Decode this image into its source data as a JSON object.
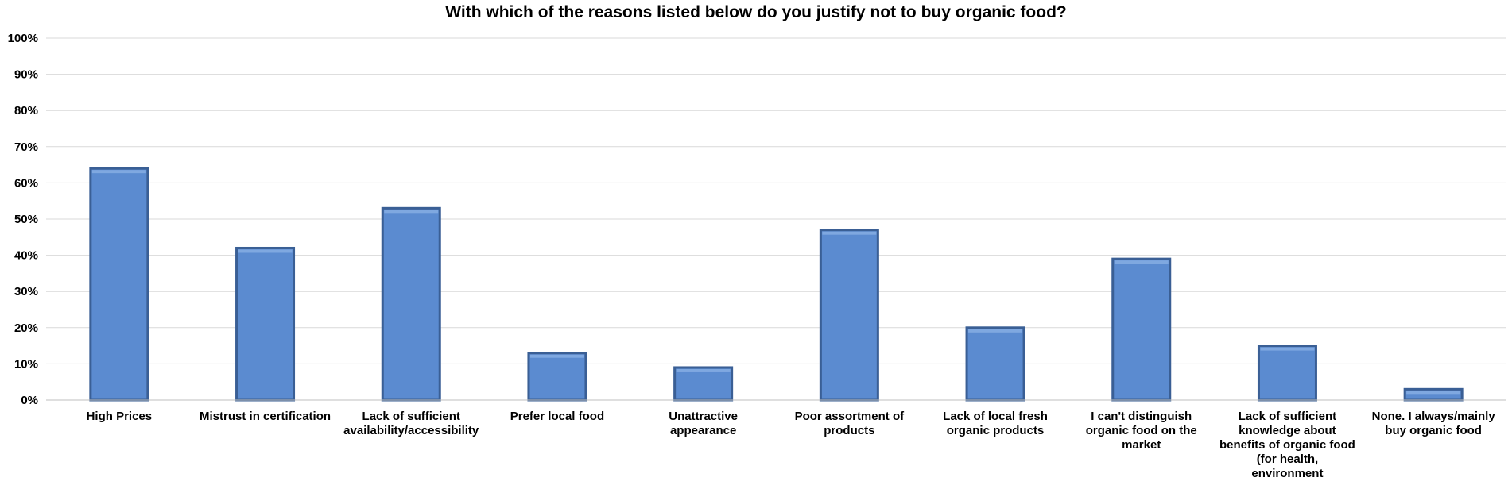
{
  "chart_data": {
    "type": "bar",
    "title": "With which of the reasons listed below do you justify not to buy organic food?",
    "categories": [
      "High Prices",
      "Mistrust in certification",
      "Lack of sufficient\navailability/accessibility",
      "Prefer local food",
      "Unattractive\nappearance",
      "Poor assortment of\nproducts",
      "Lack of local fresh\norganic products",
      "I can't distinguish\norganic food on the\nmarket",
      "Lack of sufficient\nknowledge about\nbenefits of organic food\n(for health,\nenvironment",
      "None. I always/mainly\nbuy organic food"
    ],
    "values": [
      64,
      42,
      53,
      13,
      9,
      47,
      20,
      39,
      15,
      3
    ],
    "ylim": [
      0,
      100
    ],
    "yticks": [
      "0%",
      "10%",
      "20%",
      "30%",
      "40%",
      "50%",
      "60%",
      "70%",
      "80%",
      "90%",
      "100%"
    ],
    "grid": true,
    "colors": {
      "bar": "#5b8bd0",
      "bar_edge": "#3a5f95",
      "bar_top": "#7fa8e0",
      "grid": "#d9d9d9"
    }
  }
}
